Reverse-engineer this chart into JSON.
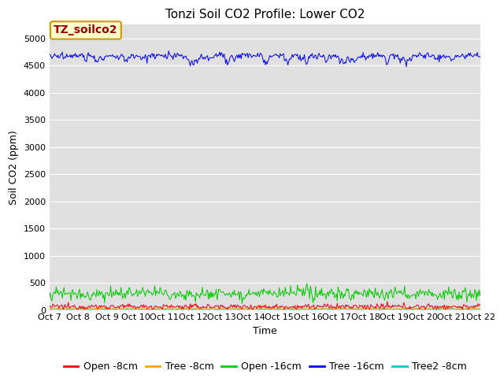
{
  "title": "Tonzi Soil CO2 Profile: Lower CO2",
  "ylabel": "Soil CO2 (ppm)",
  "xlabel": "Time",
  "legend_label": "TZ_soilco2",
  "ylim": [
    0,
    5250
  ],
  "yticks": [
    0,
    500,
    1000,
    1500,
    2000,
    2500,
    3000,
    3500,
    4000,
    4500,
    5000
  ],
  "num_points": 500,
  "series": {
    "Open -8cm": {
      "color": "#ff0000",
      "base": 60,
      "noise": 25
    },
    "Tree -8cm": {
      "color": "#ffa500",
      "base": 20,
      "noise": 8
    },
    "Open -16cm": {
      "color": "#00cc00",
      "base": 310,
      "noise": 55
    },
    "Tree -16cm": {
      "color": "#0000ff",
      "base": 4680,
      "noise": 30
    },
    "Tree2 -8cm": {
      "color": "#00cccc",
      "base": 15,
      "noise": 6
    }
  },
  "xtick_labels": [
    "Oct 7",
    "Oct 8",
    "Oct 9",
    "Oct 10",
    "Oct 11",
    "Oct 12",
    "Oct 13",
    "Oct 14",
    "Oct 15",
    "Oct 16",
    "Oct 17",
    "Oct 18",
    "Oct 19",
    "Oct 20",
    "Oct 21",
    "Oct 22"
  ],
  "background_color": "#e0e0e0",
  "figure_bg": "#ffffff",
  "title_fontsize": 11,
  "axis_fontsize": 9,
  "tick_fontsize": 8,
  "legend_fontsize": 9,
  "annotation_facecolor": "#ffffcc",
  "annotation_edgecolor": "#cc9900",
  "annotation_textcolor": "#990000",
  "grid_color": "#ffffff",
  "linewidth": 0.7
}
